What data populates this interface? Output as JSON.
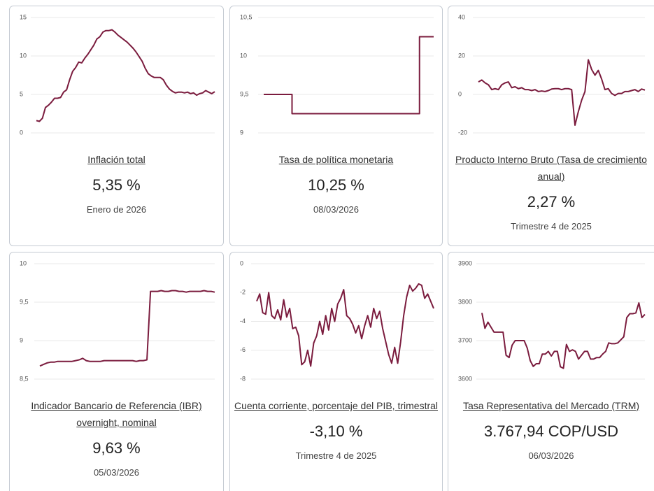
{
  "chart_data": [
    {
      "type": "line",
      "title": "Inflación total",
      "value_text": "5,35 %",
      "date": "Enero de 2026",
      "color": "#7b1c3e",
      "grid": true,
      "ylim": [
        0,
        15
      ],
      "yticks": [
        0,
        5,
        10,
        15
      ],
      "values": [
        1.6,
        1.5,
        1.9,
        3.3,
        3.6,
        4.0,
        4.5,
        4.5,
        4.6,
        5.3,
        5.6,
        6.9,
        8.0,
        8.5,
        9.2,
        9.1,
        9.7,
        10.2,
        10.8,
        11.4,
        12.2,
        12.5,
        13.1,
        13.3,
        13.3,
        13.4,
        13.1,
        12.7,
        12.4,
        12.1,
        11.8,
        11.4,
        11.0,
        10.5,
        9.9,
        9.3,
        8.4,
        7.7,
        7.4,
        7.2,
        7.2,
        7.2,
        6.9,
        6.2,
        5.7,
        5.4,
        5.2,
        5.3,
        5.3,
        5.2,
        5.3,
        5.1,
        5.2,
        4.9,
        5.1,
        5.2,
        5.5,
        5.3,
        5.1,
        5.35
      ]
    },
    {
      "type": "line",
      "step": true,
      "title": "Tasa de política monetaria",
      "value_text": "10,25 %",
      "date": "08/03/2026",
      "color": "#7b1c3e",
      "grid": true,
      "ylim": [
        9,
        10.5
      ],
      "yticks": [
        9,
        {
          "value": 9.5,
          "label": "9,5"
        },
        10,
        {
          "value": 10.5,
          "label": "10,5"
        }
      ],
      "values": [
        9.5,
        9.5,
        9.5,
        9.5,
        9.25,
        9.25,
        9.25,
        9.25,
        9.25,
        9.25,
        9.25,
        9.25,
        9.25,
        9.25,
        9.25,
        9.25,
        9.25,
        9.25,
        9.25,
        9.25,
        9.25,
        9.25,
        10.25,
        10.25
      ]
    },
    {
      "type": "line",
      "title": "Producto Interno Bruto (Tasa de crecimiento anual)",
      "value_text": "2,27 %",
      "date": "Trimestre 4 de 2025",
      "color": "#7b1c3e",
      "grid": true,
      "ylim": [
        -20,
        40
      ],
      "yticks": [
        -20,
        0,
        20,
        40
      ],
      "values": [
        6.5,
        7.5,
        6,
        5,
        2.5,
        3,
        2.5,
        5,
        6,
        6.5,
        3.5,
        4,
        3,
        3.5,
        2.5,
        2.5,
        2,
        2.5,
        1.5,
        1.8,
        1.5,
        2,
        2.8,
        3,
        3,
        2.5,
        3,
        3,
        2.5,
        -16,
        -9,
        -3,
        1.5,
        18,
        13,
        10,
        12.5,
        8,
        2.5,
        3,
        0.5,
        -0.5,
        0.5,
        0.5,
        1.5,
        1.5,
        2,
        2.5,
        1.5,
        2.8,
        2.27
      ]
    },
    {
      "type": "line",
      "title": "Indicador Bancario de Referencia (IBR) overnight, nominal",
      "value_text": "9,63 %",
      "date": "05/03/2026",
      "color": "#7b1c3e",
      "grid": true,
      "ylim": [
        8.5,
        10
      ],
      "yticks": [
        {
          "value": 8.5,
          "label": "8,5"
        },
        9,
        {
          "value": 9.5,
          "label": "9,5"
        },
        10
      ],
      "values": [
        8.67,
        8.69,
        8.71,
        8.72,
        8.72,
        8.73,
        8.73,
        8.73,
        8.73,
        8.73,
        8.74,
        8.75,
        8.77,
        8.74,
        8.73,
        8.73,
        8.73,
        8.73,
        8.74,
        8.74,
        8.74,
        8.74,
        8.74,
        8.74,
        8.74,
        8.74,
        8.74,
        8.73,
        8.74,
        8.74,
        8.75,
        9.64,
        9.64,
        9.64,
        9.65,
        9.64,
        9.64,
        9.65,
        9.65,
        9.64,
        9.64,
        9.63,
        9.64,
        9.64,
        9.64,
        9.64,
        9.65,
        9.64,
        9.64,
        9.63
      ]
    },
    {
      "type": "line",
      "title": "Cuenta corriente, porcentaje del PIB, trimestral",
      "value_text": "-3,10 %",
      "date": "Trimestre 4 de 2025",
      "color": "#7b1c3e",
      "grid": true,
      "ylim": [
        -8,
        0
      ],
      "yticks": [
        -8,
        -6,
        -4,
        -2,
        0
      ],
      "values": [
        -2.6,
        -2.1,
        -3.4,
        -3.5,
        -2,
        -3.6,
        -3.8,
        -3.2,
        -3.9,
        -2.5,
        -3.7,
        -3.1,
        -4.5,
        -4.4,
        -5,
        -7,
        -6.8,
        -6,
        -7.1,
        -5.5,
        -5,
        -4,
        -4.9,
        -3.6,
        -4.6,
        -3.1,
        -4,
        -2.8,
        -2.4,
        -1.8,
        -3.6,
        -3.8,
        -4.2,
        -4.8,
        -4.3,
        -5.2,
        -4.3,
        -3.6,
        -4.4,
        -3.1,
        -3.8,
        -3.3,
        -4.5,
        -5.4,
        -6.3,
        -6.9,
        -5.8,
        -6.9,
        -5.4,
        -3.6,
        -2.3,
        -1.5,
        -1.9,
        -1.7,
        -1.4,
        -1.5,
        -2.4,
        -2.1,
        -2.6,
        -3.1
      ]
    },
    {
      "type": "line",
      "title": "Tasa Representativa del Mercado (TRM)",
      "value_text": "3.767,94 COP/USD",
      "date": "06/03/2026",
      "color": "#7b1c3e",
      "grid": true,
      "ylim": [
        3600,
        3900
      ],
      "yticks": [
        3600,
        3700,
        3800,
        3900
      ],
      "values": [
        3772,
        3732,
        3748,
        3735,
        3722,
        3722,
        3722,
        3722,
        3662,
        3656,
        3688,
        3700,
        3700,
        3700,
        3700,
        3681,
        3648,
        3633,
        3640,
        3640,
        3665,
        3665,
        3672,
        3660,
        3672,
        3672,
        3632,
        3628,
        3690,
        3672,
        3676,
        3672,
        3652,
        3662,
        3672,
        3672,
        3652,
        3652,
        3656,
        3656,
        3665,
        3672,
        3694,
        3692,
        3692,
        3694,
        3702,
        3710,
        3760,
        3770,
        3770,
        3772,
        3798,
        3760,
        3768
      ]
    }
  ]
}
